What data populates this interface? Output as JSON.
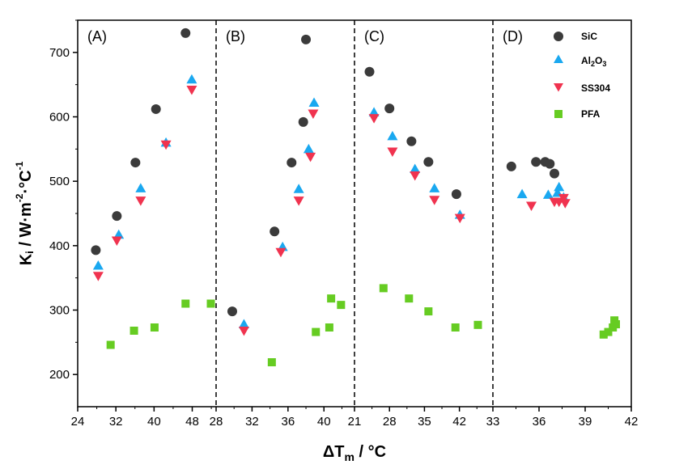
{
  "chart_data": {
    "type": "scatter",
    "ylabel": "Ki / W·m-2·°C-1",
    "xlabel": "ΔTm / °C",
    "ylim": [
      150,
      750
    ],
    "y_ticks": [
      200,
      300,
      400,
      500,
      600,
      700
    ],
    "legend_placement": "top-right",
    "colors": {
      "SiC": "#3b3b3b",
      "Al2O3": "#1aa8f0",
      "SS304": "#f0334f",
      "PFA": "#66cc22"
    },
    "panels": [
      {
        "label": "(A)",
        "xlim": [
          24,
          53
        ],
        "x_ticks": [
          "24",
          "32",
          "40",
          "48"
        ],
        "x_tick_values": [
          24,
          32,
          40,
          48
        ],
        "series": [
          {
            "name": "SiC",
            "marker": "circle",
            "points": [
              [
                27.8,
                393
              ],
              [
                32.2,
                446
              ],
              [
                36.1,
                529
              ],
              [
                40.4,
                612
              ],
              [
                46.6,
                730
              ]
            ]
          },
          {
            "name": "Al2O3",
            "marker": "triangle-up",
            "points": [
              [
                28.3,
                369
              ],
              [
                32.6,
                417
              ],
              [
                37.2,
                489
              ],
              [
                42.5,
                560
              ],
              [
                47.9,
                658
              ]
            ]
          },
          {
            "name": "SS304",
            "marker": "triangle-down",
            "points": [
              [
                28.3,
                353
              ],
              [
                32.2,
                408
              ],
              [
                37.2,
                470
              ],
              [
                42.5,
                557
              ],
              [
                47.9,
                642
              ]
            ]
          },
          {
            "name": "PFA",
            "marker": "square",
            "points": [
              [
                30.9,
                246
              ],
              [
                35.8,
                268
              ],
              [
                40.1,
                273
              ],
              [
                46.6,
                310
              ],
              [
                51.9,
                310
              ]
            ]
          }
        ]
      },
      {
        "label": "(B)",
        "xlim": [
          28,
          43.4
        ],
        "x_ticks": [
          "28",
          "32",
          "36",
          "40"
        ],
        "x_tick_values": [
          28,
          32,
          36,
          40
        ],
        "series": [
          {
            "name": "SiC",
            "marker": "circle",
            "points": [
              [
                29.8,
                298
              ],
              [
                34.5,
                422
              ],
              [
                36.4,
                529
              ],
              [
                37.7,
                592
              ],
              [
                38.0,
                720
              ]
            ]
          },
          {
            "name": "Al2O3",
            "marker": "triangle-up",
            "points": [
              [
                31.1,
                278
              ],
              [
                35.4,
                398
              ],
              [
                37.2,
                488
              ],
              [
                38.3,
                550
              ],
              [
                38.9,
                622
              ]
            ]
          },
          {
            "name": "SS304",
            "marker": "triangle-down",
            "points": [
              [
                31.1,
                268
              ],
              [
                35.2,
                390
              ],
              [
                37.2,
                470
              ],
              [
                38.5,
                538
              ],
              [
                38.8,
                605
              ]
            ]
          },
          {
            "name": "PFA",
            "marker": "square",
            "points": [
              [
                34.2,
                219
              ],
              [
                39.1,
                266
              ],
              [
                40.6,
                273
              ],
              [
                40.8,
                318
              ],
              [
                41.9,
                308
              ]
            ]
          }
        ]
      },
      {
        "label": "(C)",
        "xlim": [
          21,
          48.7
        ],
        "x_ticks": [
          "21",
          "28",
          "35",
          "42"
        ],
        "x_tick_values": [
          21,
          28,
          35,
          42
        ],
        "series": [
          {
            "name": "SiC",
            "marker": "circle",
            "points": [
              [
                24.0,
                670
              ],
              [
                28.0,
                613
              ],
              [
                32.4,
                562
              ],
              [
                35.8,
                530
              ],
              [
                41.4,
                480
              ]
            ]
          },
          {
            "name": "Al2O3",
            "marker": "triangle-up",
            "points": [
              [
                24.9,
                607
              ],
              [
                28.6,
                570
              ],
              [
                33.1,
                519
              ],
              [
                37.0,
                489
              ],
              [
                42.1,
                448
              ]
            ]
          },
          {
            "name": "SS304",
            "marker": "triangle-down",
            "points": [
              [
                24.9,
                598
              ],
              [
                28.6,
                546
              ],
              [
                33.1,
                509
              ],
              [
                37.0,
                471
              ],
              [
                42.1,
                443
              ]
            ]
          },
          {
            "name": "PFA",
            "marker": "square",
            "points": [
              [
                26.8,
                334
              ],
              [
                31.9,
                318
              ],
              [
                35.8,
                298
              ],
              [
                41.2,
                273
              ],
              [
                45.7,
                277
              ]
            ]
          }
        ]
      },
      {
        "label": "(D)",
        "xlim": [
          33,
          42
        ],
        "x_ticks": [
          "33",
          "36",
          "39",
          "42"
        ],
        "x_tick_values": [
          33,
          36,
          39,
          42
        ],
        "series": [
          {
            "name": "SiC",
            "marker": "circle",
            "points": [
              [
                34.2,
                523
              ],
              [
                35.8,
                530
              ],
              [
                36.4,
                530
              ],
              [
                36.7,
                527
              ],
              [
                37.0,
                512
              ]
            ]
          },
          {
            "name": "Al2O3",
            "marker": "triangle-up",
            "points": [
              [
                34.9,
                480
              ],
              [
                36.6,
                479
              ],
              [
                37.2,
                482
              ],
              [
                37.3,
                491
              ],
              [
                37.6,
                475
              ]
            ]
          },
          {
            "name": "SS304",
            "marker": "triangle-down",
            "points": [
              [
                35.5,
                462
              ],
              [
                37.0,
                468
              ],
              [
                37.3,
                468
              ],
              [
                37.6,
                474
              ],
              [
                37.7,
                466
              ]
            ]
          },
          {
            "name": "PFA",
            "marker": "square",
            "points": [
              [
                40.2,
                262
              ],
              [
                40.5,
                266
              ],
              [
                40.8,
                273
              ],
              [
                40.9,
                284
              ],
              [
                41.0,
                278
              ]
            ]
          }
        ]
      }
    ]
  }
}
